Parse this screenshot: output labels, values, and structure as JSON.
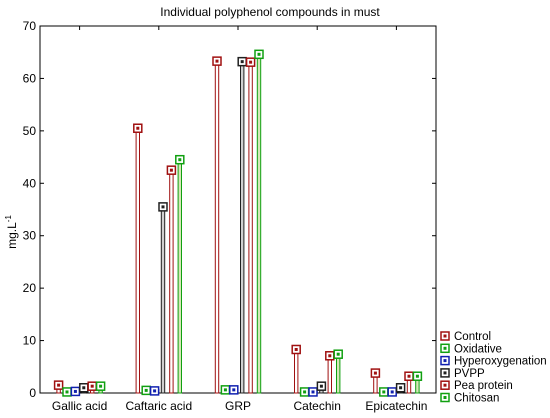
{
  "chart_data": {
    "type": "bar",
    "title": "Individual polyphenol compounds in must",
    "xlabel": "",
    "ylabel": "mg.L",
    "ylabel_superscript": "-1",
    "ylim": [
      0,
      70
    ],
    "yticks": [
      0,
      10,
      20,
      30,
      40,
      50,
      60,
      70
    ],
    "categories": [
      "Gallic acid",
      "Caftaric acid",
      "GRP",
      "Catechin",
      "Epicatechin"
    ],
    "legend_position": "bottom-right",
    "series": [
      {
        "name": "Control",
        "color": "#a01010",
        "fill": "#ffffff",
        "values": [
          1.5,
          50.5,
          63.3,
          8.3,
          3.8
        ]
      },
      {
        "name": "Oxidative",
        "color": "#10a010",
        "fill": "#ffffff",
        "values": [
          0.2,
          0.5,
          0.6,
          0.2,
          0.2
        ]
      },
      {
        "name": "Hyperoxygenation",
        "color": "#1020b0",
        "fill": "#ffffff",
        "values": [
          0.3,
          0.4,
          0.6,
          0.2,
          0.2
        ]
      },
      {
        "name": "PVPP",
        "color": "#202020",
        "fill": "#d0d0d0",
        "values": [
          1.0,
          35.5,
          63.2,
          1.3,
          1.0
        ]
      },
      {
        "name": "Pea protein",
        "color": "#a01010",
        "fill": "#ffffff",
        "values": [
          1.3,
          42.5,
          63.1,
          7.1,
          3.2
        ]
      },
      {
        "name": "Chitosan",
        "color": "#10a010",
        "fill": "#d6e6b8",
        "values": [
          1.3,
          44.5,
          64.6,
          7.4,
          3.2
        ]
      }
    ]
  }
}
